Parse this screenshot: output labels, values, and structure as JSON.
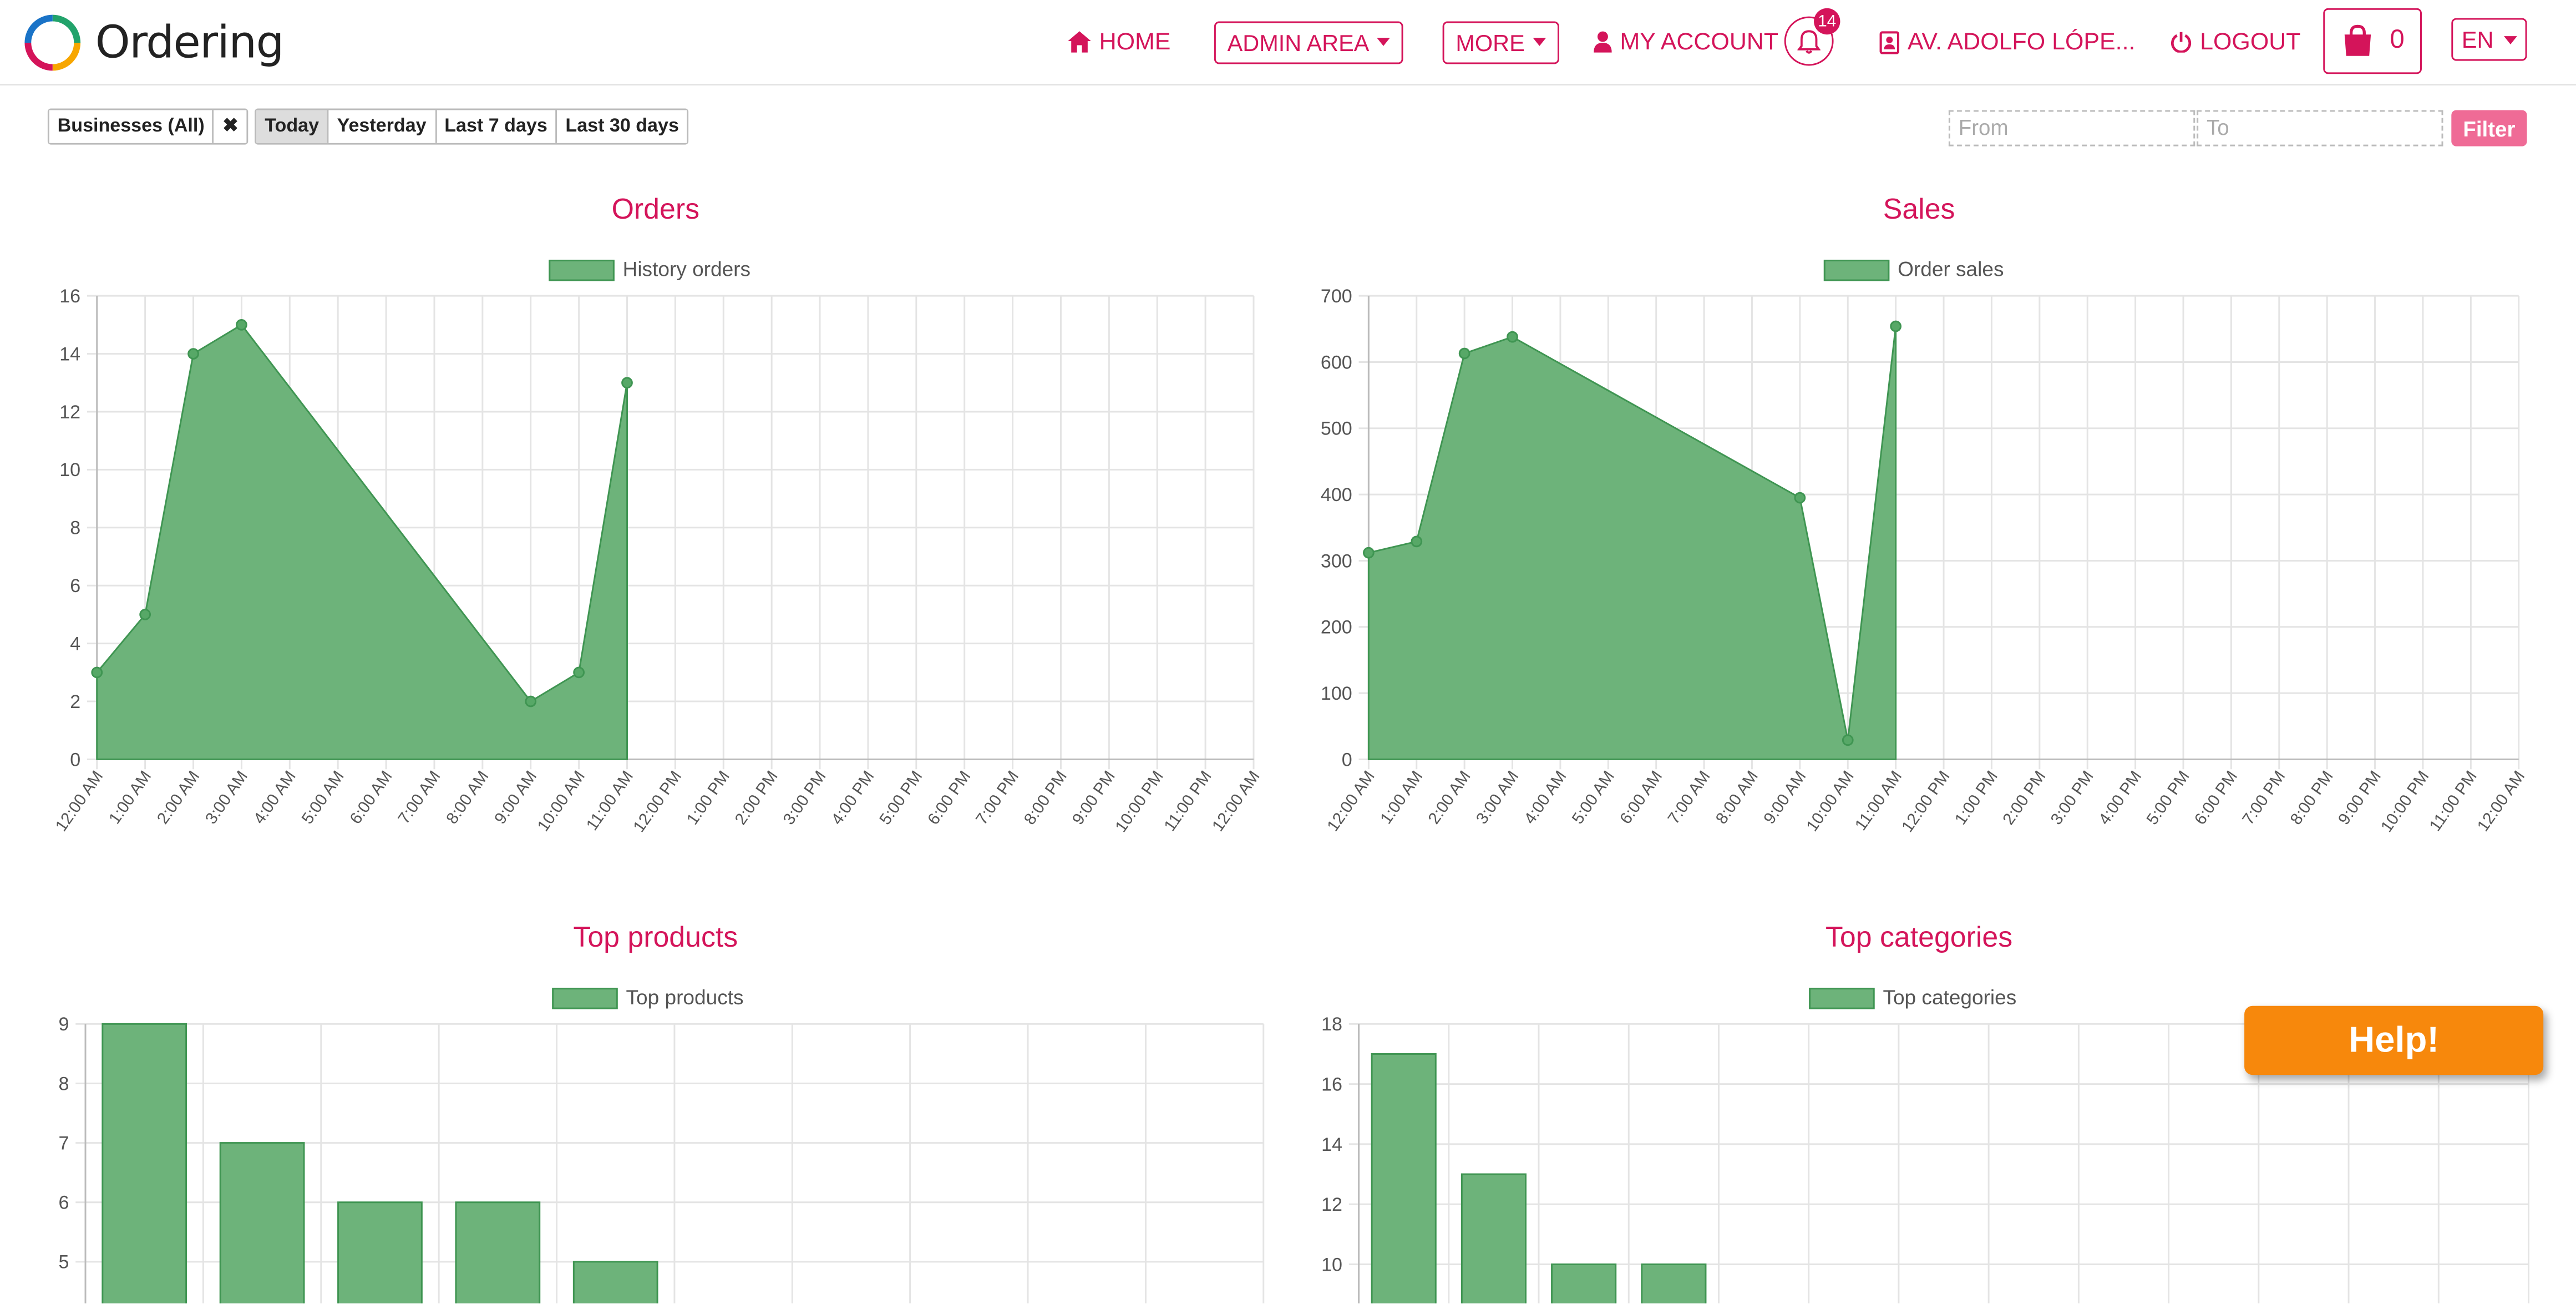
{
  "header": {
    "logo_text": "Ordering",
    "nav": {
      "home": "HOME",
      "admin_area": "ADMIN AREA",
      "more": "MORE",
      "my_account": "MY ACCOUNT",
      "notifications_count": "14",
      "address": "AV. ADOLFO LÓPE...",
      "logout": "LOGOUT",
      "cart_count": "0",
      "language": "EN"
    }
  },
  "filters": {
    "businesses": "Businesses (All)",
    "clear_symbol": "✖",
    "ranges": [
      "Today",
      "Yesterday",
      "Last 7 days",
      "Last 30 days"
    ],
    "active_range": "Today",
    "from_placeholder": "From",
    "to_placeholder": "To",
    "filter_label": "Filter"
  },
  "help_label": "Help!",
  "colors": {
    "accent": "#d4145a",
    "series_fill": "#6db37a",
    "series_line": "#3f9552",
    "help": "#f7880c",
    "filter_button": "#ef6b96"
  },
  "chart_data": [
    {
      "type": "area",
      "title": "Orders",
      "x": [
        "12:00 AM",
        "1:00 AM",
        "2:00 AM",
        "3:00 AM",
        "4:00 AM",
        "5:00 AM",
        "6:00 AM",
        "7:00 AM",
        "8:00 AM",
        "9:00 AM",
        "10:00 AM",
        "11:00 AM",
        "12:00 PM",
        "1:00 PM",
        "2:00 PM",
        "3:00 PM",
        "4:00 PM",
        "5:00 PM",
        "6:00 PM",
        "7:00 PM",
        "8:00 PM",
        "9:00 PM",
        "10:00 PM",
        "11:00 PM",
        "12:00 AM"
      ],
      "series": [
        {
          "name": "History orders",
          "points": [
            [
              0,
              3
            ],
            [
              1,
              5
            ],
            [
              2,
              14
            ],
            [
              3,
              15
            ],
            [
              9,
              2
            ],
            [
              10,
              3
            ],
            [
              11,
              13
            ]
          ]
        }
      ],
      "ylim": [
        0,
        16
      ],
      "yticks": [
        0,
        2,
        4,
        6,
        8,
        10,
        12,
        14,
        16
      ],
      "grid": true,
      "legend": "top-center"
    },
    {
      "type": "area",
      "title": "Sales",
      "x": [
        "12:00 AM",
        "1:00 AM",
        "2:00 AM",
        "3:00 AM",
        "4:00 AM",
        "5:00 AM",
        "6:00 AM",
        "7:00 AM",
        "8:00 AM",
        "9:00 AM",
        "10:00 AM",
        "11:00 AM",
        "12:00 PM",
        "1:00 PM",
        "2:00 PM",
        "3:00 PM",
        "4:00 PM",
        "5:00 PM",
        "6:00 PM",
        "7:00 PM",
        "8:00 PM",
        "9:00 PM",
        "10:00 PM",
        "11:00 PM",
        "12:00 AM"
      ],
      "series": [
        {
          "name": "Order sales",
          "points": [
            [
              0,
              312
            ],
            [
              1,
              329
            ],
            [
              2,
              613
            ],
            [
              3,
              638
            ],
            [
              9,
              395
            ],
            [
              10,
              29
            ],
            [
              11,
              654
            ]
          ]
        }
      ],
      "ylim": [
        0,
        700
      ],
      "yticks": [
        0,
        100,
        200,
        300,
        400,
        500,
        600,
        700
      ],
      "grid": true,
      "legend": "top-center"
    },
    {
      "type": "bar",
      "title": "Top products",
      "series": [
        {
          "name": "Top products",
          "values": [
            9,
            7,
            6,
            6,
            5
          ]
        }
      ],
      "slots": 10,
      "ylim": [
        4.3,
        9
      ],
      "yticks": [
        5,
        6,
        7,
        8,
        9
      ],
      "grid": true,
      "legend": "top-center"
    },
    {
      "type": "bar",
      "title": "Top categories",
      "series": [
        {
          "name": "Top categories",
          "values": [
            17,
            13,
            10,
            10
          ]
        }
      ],
      "slots": 13,
      "ylim": [
        8.7,
        18
      ],
      "yticks": [
        10,
        12,
        14,
        16,
        18
      ],
      "grid": true,
      "legend": "top-center"
    }
  ]
}
